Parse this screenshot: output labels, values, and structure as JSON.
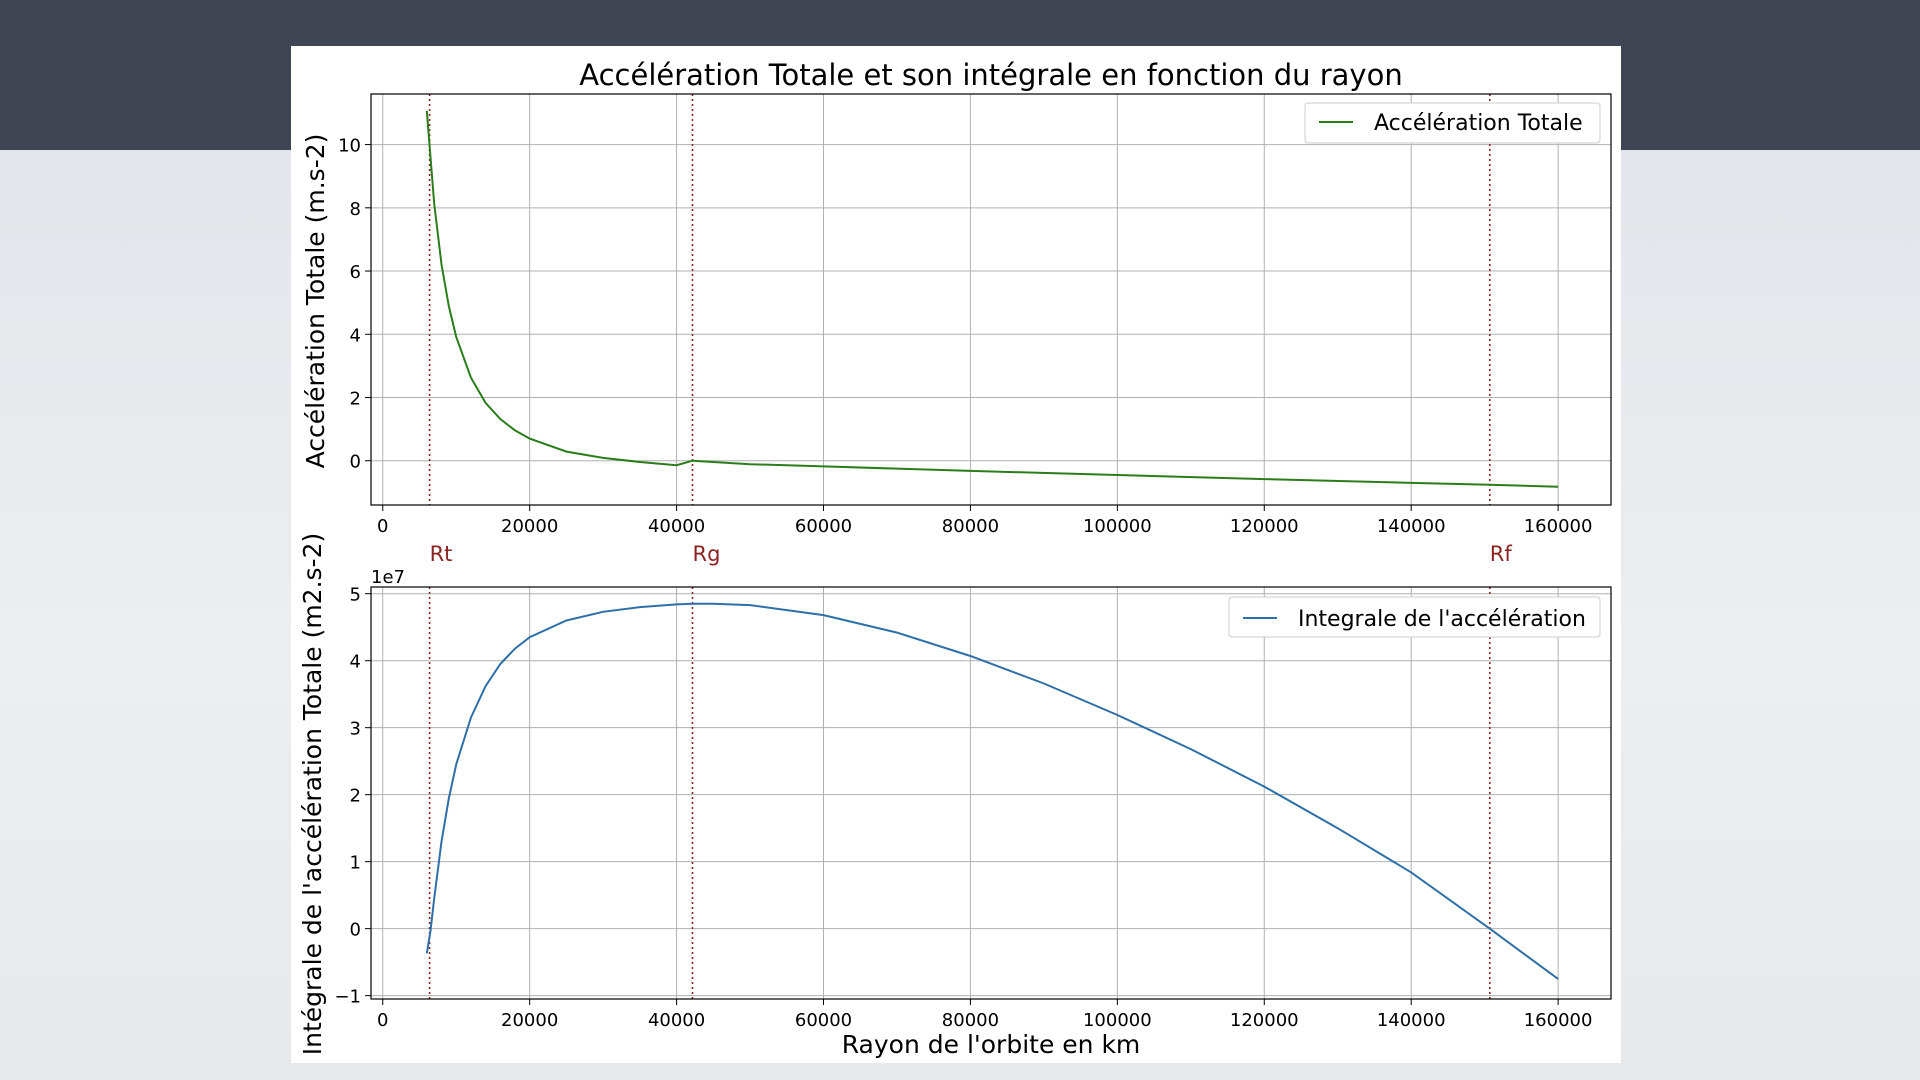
{
  "figure_title": "Accélération Totale et son intégrale en fonction du rayon",
  "colors": {
    "topbar": "#3f4553",
    "acceleration": "#2a7d1a",
    "integral": "#2f6fa8",
    "markers": "#8b2323"
  },
  "markers": [
    {
      "label": "Rt",
      "x": 6378
    },
    {
      "label": "Rg",
      "x": 42164
    },
    {
      "label": "Rf",
      "x": 150700
    }
  ],
  "chart_data": [
    {
      "type": "line",
      "xlabel": "",
      "ylabel": "Accélération Totale (m.s-2)",
      "xlim": [
        -1600,
        167200
      ],
      "ylim": [
        -1.4,
        11.6
      ],
      "x_ticks": [
        0,
        20000,
        40000,
        60000,
        80000,
        100000,
        120000,
        140000,
        160000
      ],
      "y_ticks": [
        0,
        2,
        4,
        6,
        8,
        10
      ],
      "grid": true,
      "legend": "top-right",
      "series": [
        {
          "name": "Accélération Totale",
          "x": [
            6000,
            7000,
            8000,
            9000,
            10000,
            12000,
            14000,
            16000,
            18000,
            20000,
            25000,
            30000,
            35000,
            40000,
            42164,
            50000,
            60000,
            80000,
            100000,
            120000,
            140000,
            150700,
            160000
          ],
          "y": [
            11.07,
            8.13,
            6.21,
            4.88,
            3.92,
            2.63,
            1.83,
            1.32,
            0.96,
            0.7,
            0.29,
            0.09,
            -0.04,
            -0.14,
            0.0,
            -0.11,
            -0.18,
            -0.32,
            -0.45,
            -0.58,
            -0.7,
            -0.76,
            -0.82
          ]
        }
      ]
    },
    {
      "type": "line",
      "xlabel": "Rayon de l'orbite en km",
      "ylabel": "Intégrale de l'accélération Totale (m2.s-2)",
      "y_offset_label": "1e7",
      "xlim": [
        -1600,
        167200
      ],
      "ylim": [
        -1.05,
        5.1
      ],
      "x_ticks": [
        0,
        20000,
        40000,
        60000,
        80000,
        100000,
        120000,
        140000,
        160000
      ],
      "y_ticks": [
        -1,
        0,
        1,
        2,
        3,
        4,
        5
      ],
      "grid": true,
      "legend": "top-right",
      "series": [
        {
          "name": "Integrale de l'accélération",
          "x": [
            6000,
            6500,
            7000,
            8000,
            9000,
            10000,
            12000,
            14000,
            16000,
            18000,
            20000,
            25000,
            30000,
            35000,
            40000,
            42164,
            45000,
            50000,
            60000,
            70000,
            80000,
            90000,
            100000,
            110000,
            120000,
            130000,
            140000,
            150700,
            160000
          ],
          "y": [
            -0.37,
            -0.03,
            0.45,
            1.3,
            1.95,
            2.45,
            3.15,
            3.62,
            3.95,
            4.18,
            4.35,
            4.6,
            4.73,
            4.8,
            4.84,
            4.85,
            4.85,
            4.83,
            4.68,
            4.42,
            4.07,
            3.66,
            3.19,
            2.68,
            2.12,
            1.5,
            0.84,
            0.0,
            -0.75
          ]
        }
      ]
    }
  ]
}
